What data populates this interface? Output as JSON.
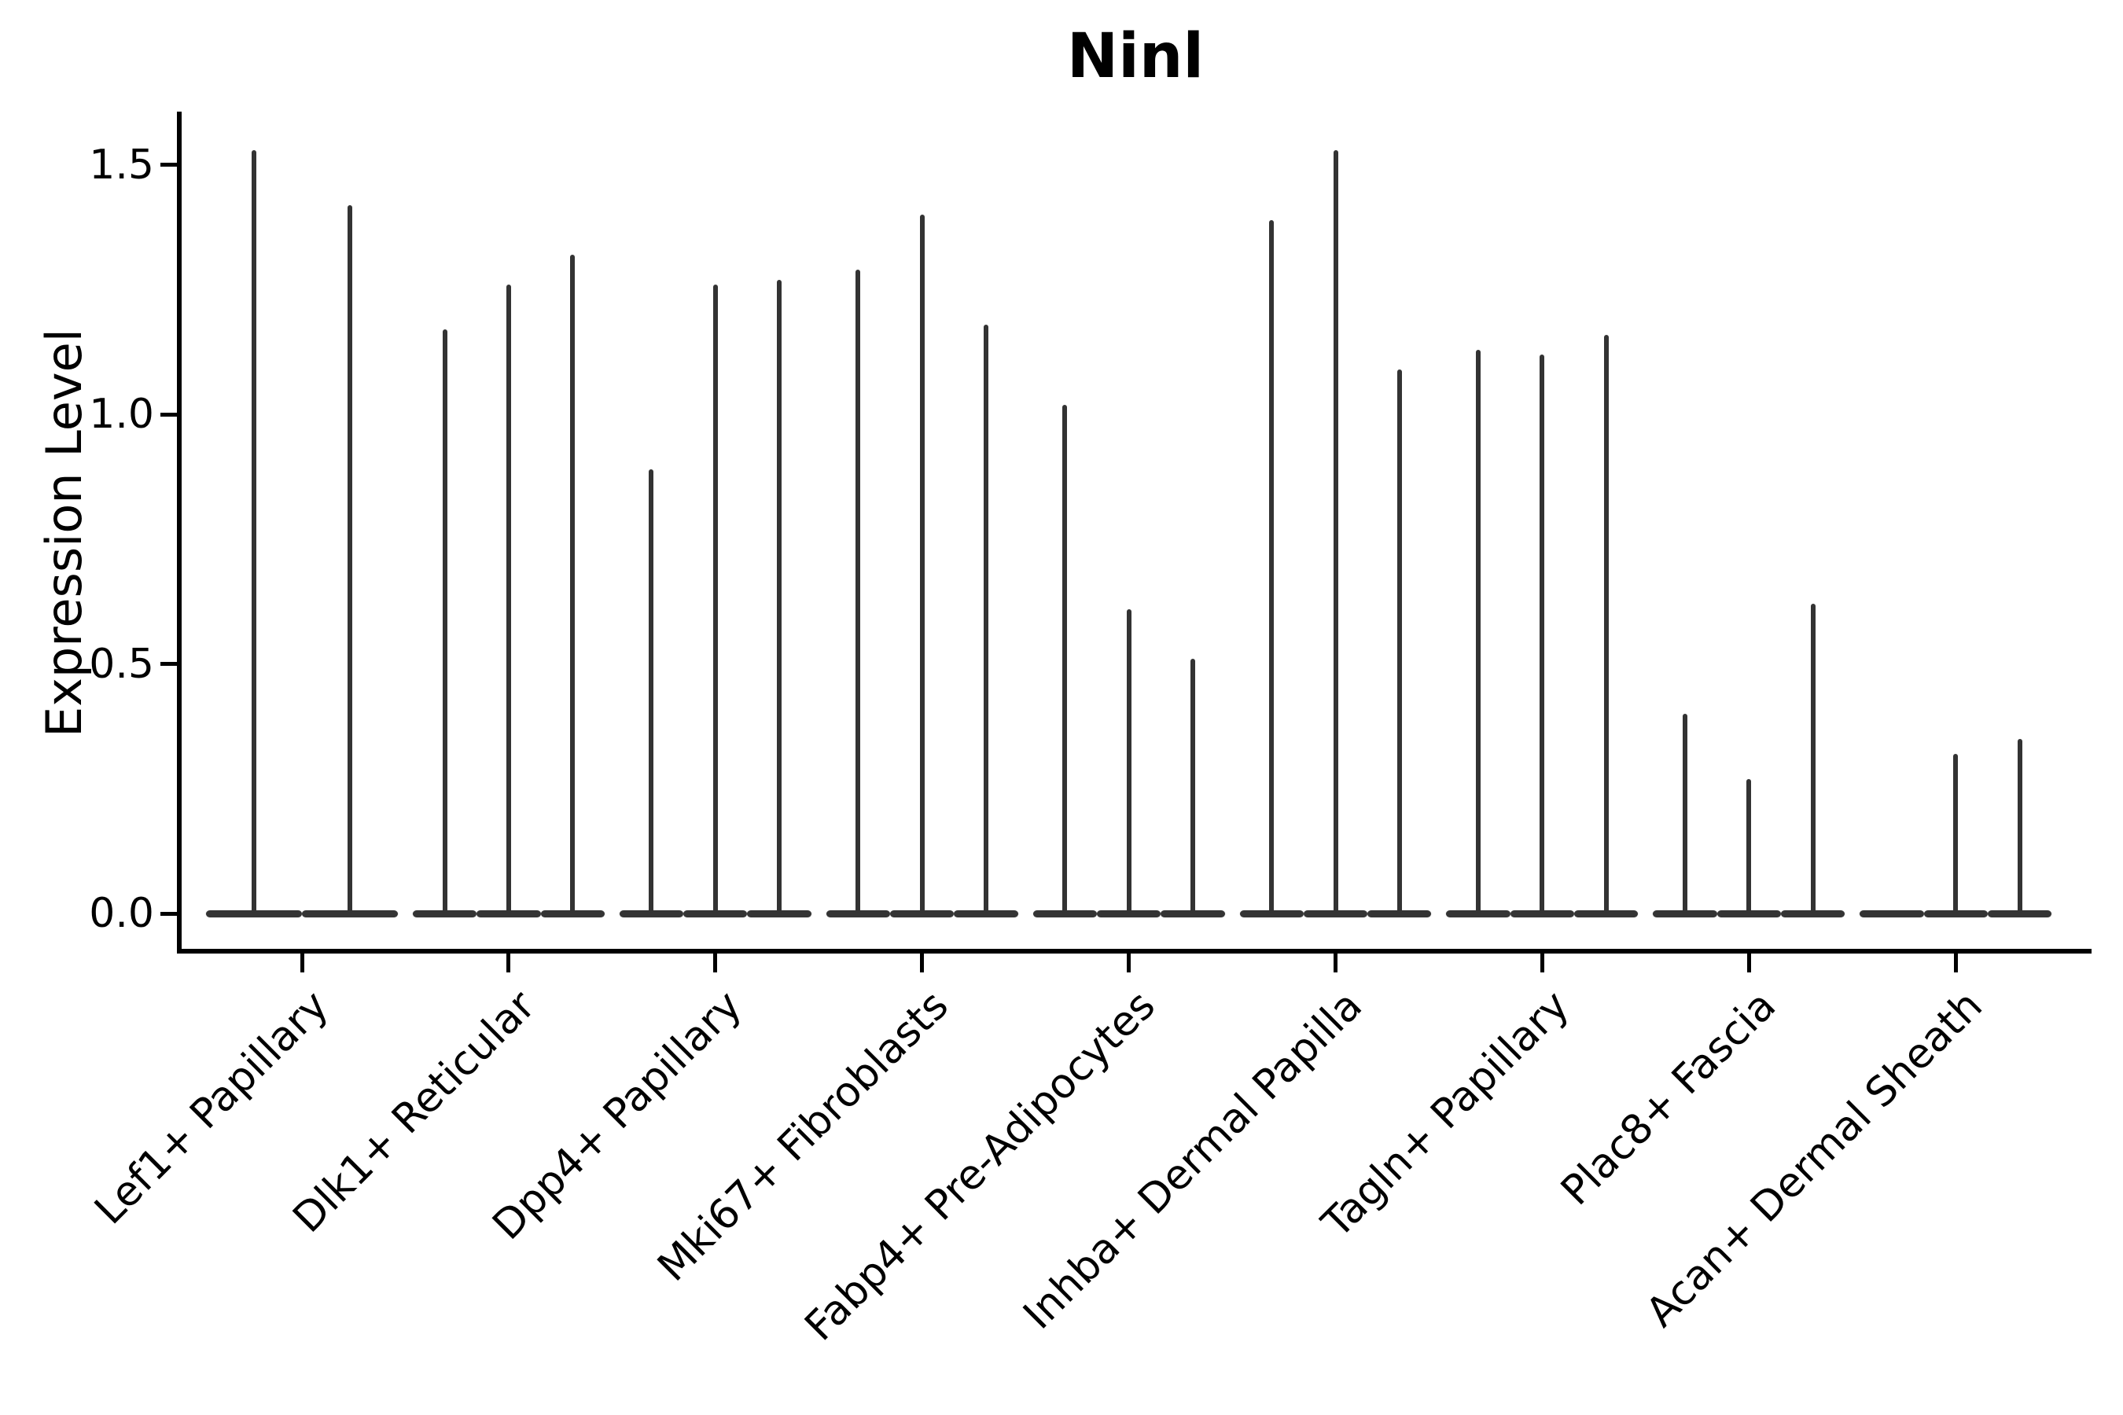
{
  "title": "Ninl",
  "y_axis": {
    "label": "Expression Level",
    "tick_labels": [
      "0.0",
      "0.5",
      "1.0",
      "1.5"
    ]
  },
  "colors": {
    "background": "#ffffff",
    "violin": "#333333",
    "axis": "#000000",
    "text": "#000000"
  },
  "chart_data": {
    "type": "violin",
    "title": "Ninl",
    "xlabel": "",
    "ylabel": "Expression Level",
    "yticks": [
      0.0,
      0.5,
      1.0,
      1.5
    ],
    "ylim": [
      -0.08,
      1.61
    ],
    "grid": false,
    "legend": "none",
    "description": "Needle-thin violins: dense mass at 0 with a single thin spike up to the max expression value; 2-3 violins (samples) per cell-type category.",
    "categories": [
      "Lef1+ Papillary",
      "Dlk1+ Reticular",
      "Dpp4+ Papillary",
      "Mki67+ Fibroblasts",
      "Fabp4+ Pre-Adipocytes",
      "Inhba+ Dermal Papilla",
      "Tagln+ Papillary",
      "Plac8+ Fascia",
      "Acan+ Dermal Sheath"
    ],
    "groups": [
      {
        "label": "Lef1+ Papillary",
        "violin_max_values": [
          1.53,
          1.42
        ]
      },
      {
        "label": "Dlk1+ Reticular",
        "violin_max_values": [
          1.17,
          1.26,
          1.32
        ]
      },
      {
        "label": "Dpp4+ Papillary",
        "violin_max_values": [
          0.89,
          1.26,
          1.27
        ]
      },
      {
        "label": "Mki67+ Fibroblasts",
        "violin_max_values": [
          1.29,
          1.4,
          1.18
        ]
      },
      {
        "label": "Fabp4+ Pre-Adipocytes",
        "violin_max_values": [
          1.02,
          0.61,
          0.51
        ]
      },
      {
        "label": "Inhba+ Dermal Papilla",
        "violin_max_values": [
          1.39,
          1.53,
          1.09
        ]
      },
      {
        "label": "Tagln+ Papillary",
        "violin_max_values": [
          1.13,
          1.12,
          1.16
        ]
      },
      {
        "label": "Plac8+ Fascia",
        "violin_max_values": [
          0.4,
          0.27,
          0.62
        ]
      },
      {
        "label": "Acan+ Dermal Sheath",
        "violin_max_values": [
          0.0,
          0.32,
          0.35
        ]
      }
    ]
  }
}
